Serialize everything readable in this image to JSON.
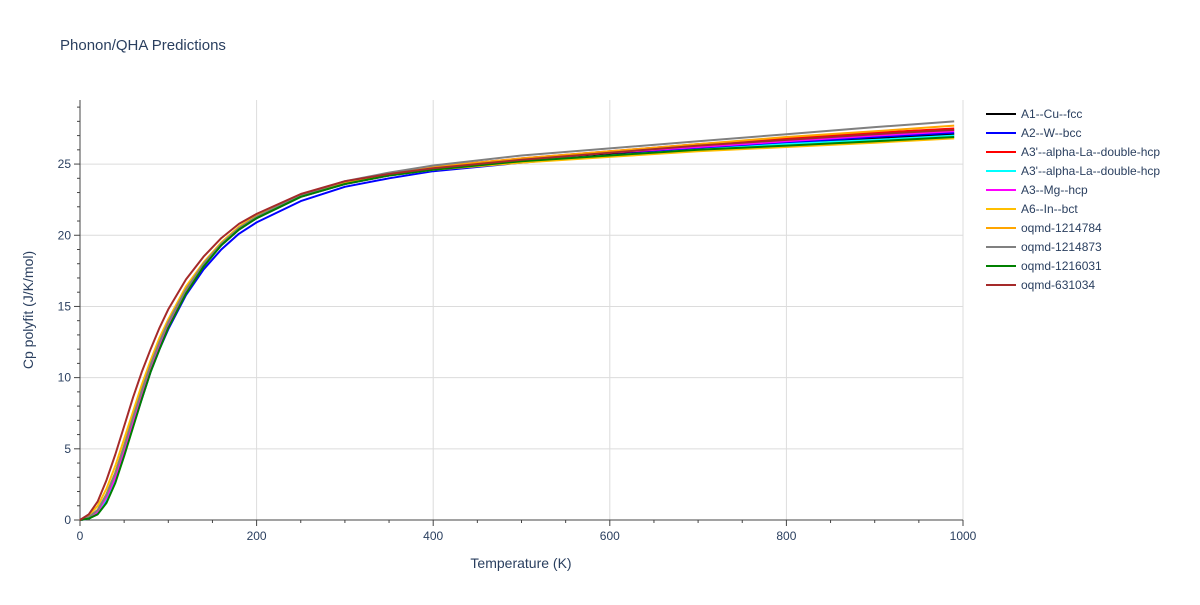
{
  "chart_data": {
    "type": "line",
    "title": "Phonon/QHA Predictions",
    "xlabel": "Temperature (K)",
    "ylabel": "Cp polyfit (J/K/mol)",
    "xlim": [
      0,
      1000
    ],
    "ylim": [
      0,
      29.5
    ],
    "xticks": [
      0,
      200,
      400,
      600,
      800,
      1000
    ],
    "yticks": [
      0,
      5,
      10,
      15,
      20,
      25
    ],
    "grid": true,
    "legend_position": "right",
    "x": [
      0,
      10,
      20,
      30,
      40,
      50,
      60,
      70,
      80,
      90,
      100,
      120,
      140,
      160,
      180,
      200,
      250,
      300,
      350,
      400,
      500,
      600,
      700,
      800,
      900,
      990
    ],
    "series": [
      {
        "name": "A1--Cu--fcc",
        "color": "#000000",
        "values": [
          0,
          0.1,
          0.5,
          1.4,
          2.8,
          4.7,
          6.8,
          8.7,
          10.6,
          12.2,
          13.6,
          16.0,
          17.9,
          19.3,
          20.4,
          21.2,
          22.7,
          23.6,
          24.2,
          24.6,
          25.2,
          25.7,
          26.1,
          26.5,
          26.8,
          27.1
        ]
      },
      {
        "name": "A2--W--bcc",
        "color": "#0000ff",
        "values": [
          0,
          0.1,
          0.5,
          1.4,
          2.8,
          4.6,
          6.6,
          8.5,
          10.4,
          12.0,
          13.4,
          15.8,
          17.6,
          19.0,
          20.1,
          20.9,
          22.4,
          23.4,
          24.0,
          24.5,
          25.1,
          25.6,
          26.1,
          26.5,
          26.9,
          27.2
        ]
      },
      {
        "name": "A3'--alpha-La--double-hcp",
        "color": "#ff0000",
        "values": [
          0,
          0.2,
          0.7,
          1.8,
          3.3,
          5.2,
          7.2,
          9.1,
          10.9,
          12.5,
          13.9,
          16.2,
          18.0,
          19.4,
          20.5,
          21.3,
          22.8,
          23.7,
          24.3,
          24.8,
          25.4,
          25.9,
          26.4,
          26.8,
          27.2,
          27.5
        ]
      },
      {
        "name": "A3'--alpha-La--double-hcp",
        "color": "#00ffff",
        "values": [
          0,
          0.1,
          0.5,
          1.5,
          2.9,
          4.8,
          6.8,
          8.7,
          10.6,
          12.2,
          13.6,
          16.0,
          17.9,
          19.3,
          20.4,
          21.2,
          22.7,
          23.6,
          24.2,
          24.6,
          25.2,
          25.6,
          26.0,
          26.4,
          26.7,
          27.0
        ]
      },
      {
        "name": "A3--Mg--hcp",
        "color": "#ff00ff",
        "values": [
          0,
          0.1,
          0.6,
          1.6,
          3.0,
          4.9,
          6.9,
          8.8,
          10.7,
          12.3,
          13.7,
          16.1,
          17.9,
          19.3,
          20.4,
          21.2,
          22.7,
          23.6,
          24.2,
          24.7,
          25.3,
          25.8,
          26.2,
          26.6,
          27.0,
          27.3
        ]
      },
      {
        "name": "A6--In--bct",
        "color": "#ffbf00",
        "values": [
          0,
          0.3,
          1.0,
          2.2,
          3.8,
          5.7,
          7.6,
          9.5,
          11.2,
          12.8,
          14.1,
          16.4,
          18.1,
          19.5,
          20.6,
          21.4,
          22.8,
          23.7,
          24.2,
          24.6,
          25.1,
          25.5,
          25.9,
          26.2,
          26.5,
          26.8
        ]
      },
      {
        "name": "oqmd-1214784",
        "color": "#ffa500",
        "values": [
          0,
          0.2,
          0.7,
          1.8,
          3.3,
          5.2,
          7.2,
          9.1,
          10.9,
          12.5,
          13.9,
          16.2,
          18.0,
          19.4,
          20.5,
          21.3,
          22.8,
          23.7,
          24.3,
          24.8,
          25.4,
          25.9,
          26.4,
          26.9,
          27.3,
          27.7
        ]
      },
      {
        "name": "oqmd-1214873",
        "color": "#808080",
        "values": [
          0,
          0.2,
          0.7,
          1.8,
          3.3,
          5.2,
          7.2,
          9.1,
          10.9,
          12.5,
          13.9,
          16.2,
          18.0,
          19.4,
          20.5,
          21.3,
          22.8,
          23.8,
          24.4,
          24.9,
          25.6,
          26.1,
          26.6,
          27.1,
          27.6,
          28.0
        ]
      },
      {
        "name": "oqmd-1216031",
        "color": "#008000",
        "values": [
          0,
          0.1,
          0.4,
          1.2,
          2.6,
          4.5,
          6.5,
          8.5,
          10.4,
          12.0,
          13.5,
          15.9,
          17.8,
          19.3,
          20.4,
          21.2,
          22.7,
          23.6,
          24.2,
          24.6,
          25.2,
          25.6,
          26.0,
          26.3,
          26.6,
          26.9
        ]
      },
      {
        "name": "oqmd-631034",
        "color": "#a52a2a",
        "values": [
          0,
          0.4,
          1.3,
          2.8,
          4.6,
          6.6,
          8.6,
          10.4,
          12.0,
          13.5,
          14.8,
          16.9,
          18.5,
          19.8,
          20.8,
          21.5,
          22.9,
          23.8,
          24.3,
          24.7,
          25.3,
          25.8,
          26.3,
          26.7,
          27.1,
          27.4
        ]
      }
    ]
  }
}
